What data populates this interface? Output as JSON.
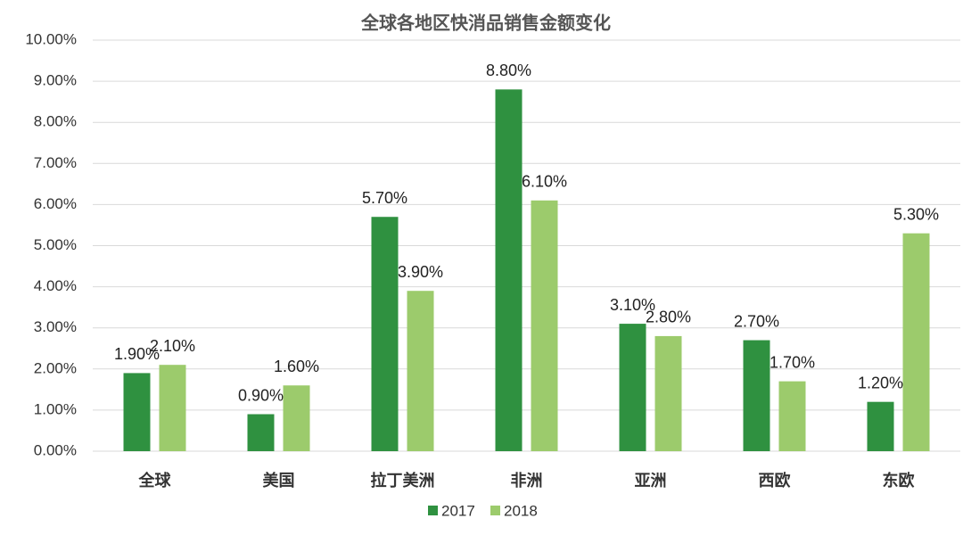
{
  "chart_data": {
    "type": "bar",
    "title": "全球各地区快消品销售金额变化",
    "categories": [
      "全球",
      "美国",
      "拉丁美洲",
      "非洲",
      "亚洲",
      "西欧",
      "东欧"
    ],
    "series": [
      {
        "name": "2017",
        "color": "#2f9140",
        "values": [
          1.9,
          0.9,
          5.7,
          8.8,
          3.1,
          2.7,
          1.2
        ],
        "value_labels": [
          "1.90%",
          "0.90%",
          "5.70%",
          "8.80%",
          "3.10%",
          "2.70%",
          "1.20%"
        ]
      },
      {
        "name": "2018",
        "color": "#9ccb6c",
        "values": [
          2.1,
          1.6,
          3.9,
          6.1,
          2.8,
          1.7,
          5.3
        ],
        "value_labels": [
          "2.10%",
          "1.60%",
          "3.90%",
          "6.10%",
          "2.80%",
          "1.70%",
          "5.30%"
        ]
      }
    ],
    "ylim": [
      0,
      10
    ],
    "yticks": [
      {
        "value": 0,
        "label": "0.00%"
      },
      {
        "value": 1,
        "label": "1.00%"
      },
      {
        "value": 2,
        "label": "2.00%"
      },
      {
        "value": 3,
        "label": "3.00%"
      },
      {
        "value": 4,
        "label": "4.00%"
      },
      {
        "value": 5,
        "label": "5.00%"
      },
      {
        "value": 6,
        "label": "6.00%"
      },
      {
        "value": 7,
        "label": "7.00%"
      },
      {
        "value": 8,
        "label": "8.00%"
      },
      {
        "value": 9,
        "label": "9.00%"
      },
      {
        "value": 10,
        "label": "10.00%"
      }
    ],
    "grid": true,
    "legend": "bottom"
  }
}
